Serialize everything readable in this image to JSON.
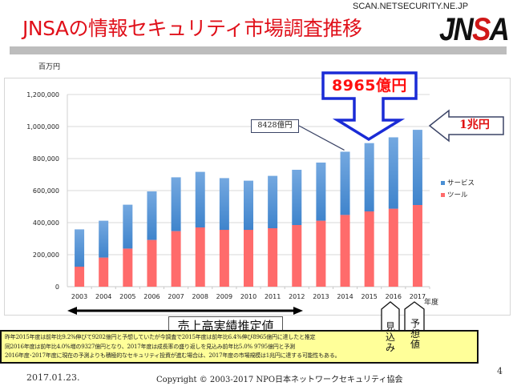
{
  "header": {
    "title": "JNSAの情報セキュリティ市場調査推移",
    "watermark": "SCAN.NETSECURITY.NE.JP",
    "logo_text": "JNSA"
  },
  "chart_data": {
    "type": "bar",
    "stacked": true,
    "title": "JNSAの情報セキュリティ市場調査推移",
    "ylabel": "百万円",
    "xlabel": "年度",
    "ylim": [
      0,
      1200000
    ],
    "yticks": [
      0,
      200000,
      400000,
      600000,
      800000,
      1000000,
      1200000
    ],
    "ytick_labels": [
      "0",
      "200,000",
      "400,000",
      "600,000",
      "800,000",
      "1,000,000",
      "1,200,000"
    ],
    "grid": true,
    "legend_position": "right",
    "categories": [
      "2003",
      "2004",
      "2005",
      "2006",
      "2007",
      "2008",
      "2009",
      "2010",
      "2011",
      "2012",
      "2013",
      "2014",
      "2015",
      "2016",
      "2017"
    ],
    "series": [
      {
        "name": "ツール",
        "color": "#ff6b6b",
        "values": [
          125000,
          182000,
          238000,
          292000,
          347000,
          370000,
          355000,
          355000,
          365000,
          385000,
          412000,
          448000,
          470000,
          487000,
          510000
        ]
      },
      {
        "name": "サービス",
        "color": "#4a8fd4",
        "values": [
          233000,
          230000,
          274000,
          303000,
          336000,
          347000,
          323000,
          307000,
          327000,
          345000,
          363000,
          394800,
          426500,
          445700,
          469500
        ]
      }
    ],
    "legend": [
      "サービス",
      "ツール"
    ],
    "annotations": {
      "callout_2014": "8428億円",
      "callout_2015": "8965億円",
      "callout_target": "1兆円",
      "actual_range_label": "売上高実績推定値",
      "estimate_tag": "見込み",
      "forecast_tag": "予想値"
    }
  },
  "notes": [
    "昨年2015年度は前年比9.2%伸びて9202億円と予想していたが今調査で2015年度は前年比6.4%伸び8965億円に達したと推定",
    "同2016年度は前年比4.0%増の9327億円となり、2017年度は成長率の盛り返しを見込み前年比5.0%  9795億円と予測",
    "2016年度･2017年度に現在の予測よりも積極的なセキュリティ投資が進む場合は、2017年度の市場規模は1兆円に達する可能性もある。"
  ],
  "footer": {
    "date": "2017.01.23.",
    "copyright": "Copyright © 2003-2017   NPO日本ネットワークセキュリティ協会",
    "page": "4"
  },
  "colors": {
    "title_red": "#e0101a",
    "arrow_blue": "#1a2bd6",
    "service_blue": "#4a8fd4",
    "tool_red": "#ff6b6b",
    "note_yellow": "#ffff99"
  }
}
